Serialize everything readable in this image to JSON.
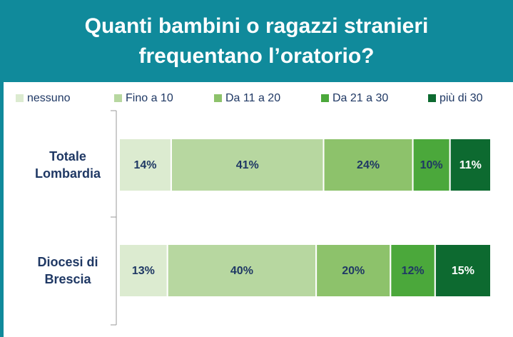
{
  "chart_data": {
    "type": "stacked_barh",
    "title": "Quanti bambini o ragazzi stranieri frequentano l’oratorio?",
    "categories": [
      "Totale Lombardia",
      "Diocesi di Brescia"
    ],
    "xlim": [
      0,
      100
    ],
    "legend": "top",
    "series": [
      {
        "name": "nessuno",
        "color": "#dcebd0",
        "values": [
          14,
          13
        ],
        "value_labels": [
          "14%",
          "13%"
        ]
      },
      {
        "name": "Fino a 10",
        "color": "#b7d7a0",
        "values": [
          41,
          40
        ],
        "value_labels": [
          "41%",
          "40%"
        ]
      },
      {
        "name": "Da 11 a 20",
        "color": "#8dc26b",
        "values": [
          24,
          20
        ],
        "value_labels": [
          "24%",
          "20%"
        ]
      },
      {
        "name": "Da 21 a 30",
        "color": "#4ba83b",
        "values": [
          10,
          12
        ],
        "value_labels": [
          "10%",
          "12%"
        ]
      },
      {
        "name": "più di 30",
        "color": "#0d6a30",
        "values": [
          11,
          15
        ],
        "value_labels": [
          "11%",
          "15%"
        ]
      }
    ]
  }
}
